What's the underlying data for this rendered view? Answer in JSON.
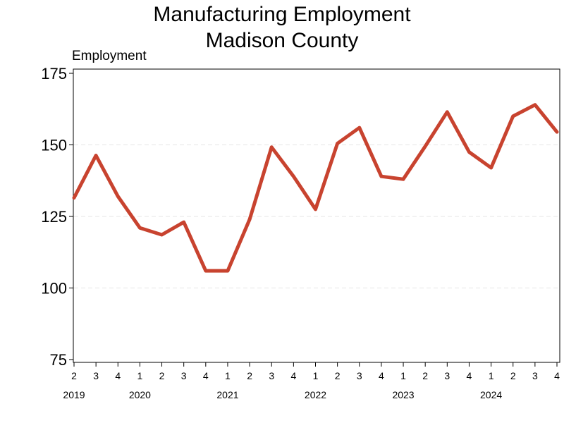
{
  "chart_data": {
    "type": "line",
    "title": "Manufacturing Employment",
    "subtitle": "Madison County",
    "ylabel": "Employment",
    "xlabel": "",
    "ylim": [
      75,
      175
    ],
    "yticks": [
      75,
      100,
      125,
      150,
      175
    ],
    "grid": true,
    "series_color": "#c8432f",
    "categories": [
      {
        "q": "2",
        "year": "2019"
      },
      {
        "q": "3",
        "year": ""
      },
      {
        "q": "4",
        "year": ""
      },
      {
        "q": "1",
        "year": "2020"
      },
      {
        "q": "2",
        "year": ""
      },
      {
        "q": "3",
        "year": ""
      },
      {
        "q": "4",
        "year": ""
      },
      {
        "q": "1",
        "year": "2021"
      },
      {
        "q": "2",
        "year": ""
      },
      {
        "q": "3",
        "year": ""
      },
      {
        "q": "4",
        "year": ""
      },
      {
        "q": "1",
        "year": "2022"
      },
      {
        "q": "2",
        "year": ""
      },
      {
        "q": "3",
        "year": ""
      },
      {
        "q": "4",
        "year": ""
      },
      {
        "q": "1",
        "year": "2023"
      },
      {
        "q": "2",
        "year": ""
      },
      {
        "q": "3",
        "year": ""
      },
      {
        "q": "4",
        "year": ""
      },
      {
        "q": "1",
        "year": "2024"
      },
      {
        "q": "2",
        "year": ""
      },
      {
        "q": "3",
        "year": ""
      },
      {
        "q": "4",
        "year": ""
      }
    ],
    "series": [
      {
        "values": [
          131.5,
          146.3,
          132.0,
          121.0,
          118.6,
          123.0,
          106.0,
          106.0,
          124.0,
          149.2,
          139.0,
          127.5,
          150.5,
          156.0,
          139.0,
          138.0,
          149.5,
          161.5,
          147.5,
          142.0,
          160.0,
          164.0,
          154.5
        ]
      }
    ]
  }
}
